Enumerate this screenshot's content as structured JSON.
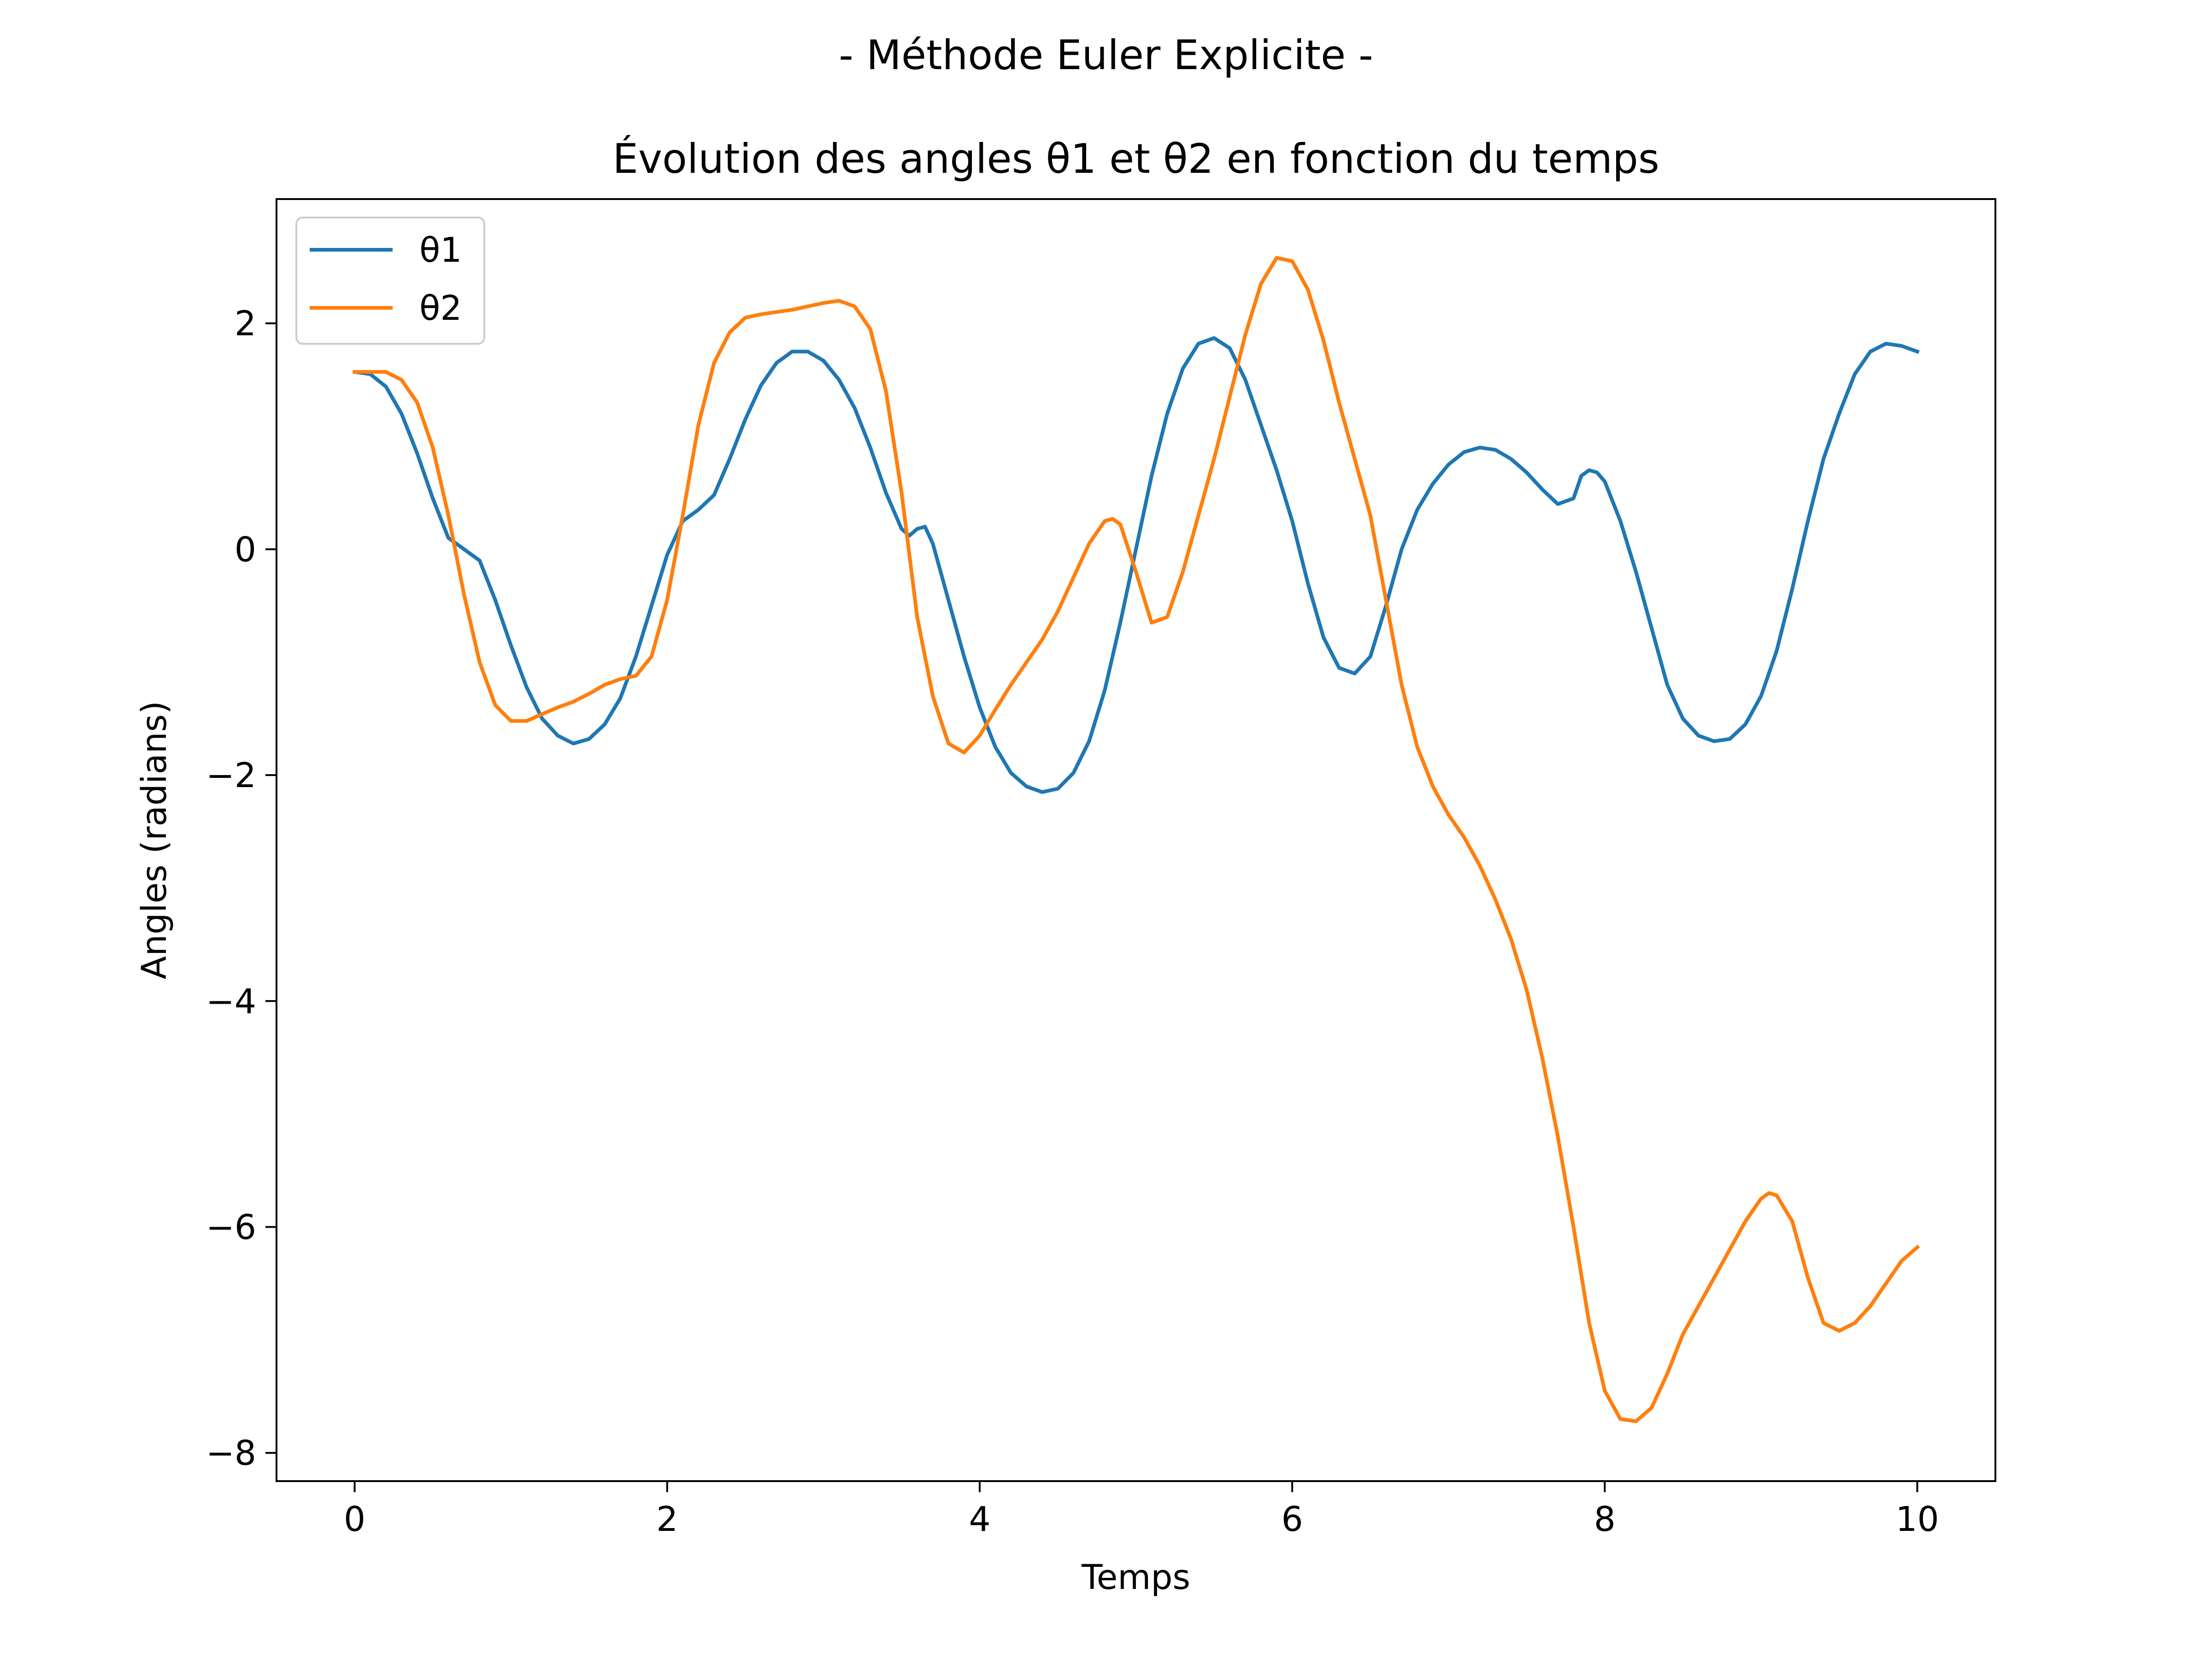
{
  "chart_data": {
    "type": "line",
    "suptitle": "- Méthode Euler Explicite -",
    "title": "Évolution des angles θ1 et θ2 en fonction du temps",
    "xlabel": "Temps",
    "ylabel": "Angles (radians)",
    "xlim": [
      -0.5,
      10.5
    ],
    "ylim": [
      -8.25,
      3.1
    ],
    "xticks": [
      0,
      2,
      4,
      6,
      8,
      10
    ],
    "xtick_labels": [
      "0",
      "2",
      "4",
      "6",
      "8",
      "10"
    ],
    "yticks": [
      -8,
      -6,
      -4,
      -2,
      0,
      2
    ],
    "ytick_labels": [
      "−8",
      "−6",
      "−4",
      "−2",
      "0",
      "2"
    ],
    "grid": false,
    "legend_position": "top-left",
    "series": [
      {
        "name": "θ1",
        "color": "#1f77b4",
        "points": [
          [
            0.0,
            1.57
          ],
          [
            0.1,
            1.55
          ],
          [
            0.2,
            1.44
          ],
          [
            0.3,
            1.2
          ],
          [
            0.4,
            0.85
          ],
          [
            0.5,
            0.45
          ],
          [
            0.6,
            0.1
          ],
          [
            0.7,
            0.0
          ],
          [
            0.8,
            -0.1
          ],
          [
            0.9,
            -0.45
          ],
          [
            1.0,
            -0.85
          ],
          [
            1.1,
            -1.22
          ],
          [
            1.2,
            -1.5
          ],
          [
            1.3,
            -1.65
          ],
          [
            1.4,
            -1.72
          ],
          [
            1.5,
            -1.68
          ],
          [
            1.6,
            -1.55
          ],
          [
            1.7,
            -1.32
          ],
          [
            1.8,
            -0.95
          ],
          [
            1.9,
            -0.5
          ],
          [
            2.0,
            -0.05
          ],
          [
            2.1,
            0.25
          ],
          [
            2.2,
            0.35
          ],
          [
            2.3,
            0.48
          ],
          [
            2.4,
            0.8
          ],
          [
            2.5,
            1.15
          ],
          [
            2.6,
            1.45
          ],
          [
            2.7,
            1.65
          ],
          [
            2.8,
            1.75
          ],
          [
            2.9,
            1.75
          ],
          [
            3.0,
            1.67
          ],
          [
            3.1,
            1.5
          ],
          [
            3.2,
            1.25
          ],
          [
            3.3,
            0.9
          ],
          [
            3.4,
            0.5
          ],
          [
            3.5,
            0.18
          ],
          [
            3.55,
            0.12
          ],
          [
            3.6,
            0.18
          ],
          [
            3.65,
            0.2
          ],
          [
            3.7,
            0.05
          ],
          [
            3.8,
            -0.45
          ],
          [
            3.9,
            -0.95
          ],
          [
            4.0,
            -1.4
          ],
          [
            4.1,
            -1.75
          ],
          [
            4.2,
            -1.98
          ],
          [
            4.3,
            -2.1
          ],
          [
            4.4,
            -2.15
          ],
          [
            4.5,
            -2.12
          ],
          [
            4.6,
            -1.98
          ],
          [
            4.7,
            -1.7
          ],
          [
            4.8,
            -1.25
          ],
          [
            4.9,
            -0.65
          ],
          [
            5.0,
            0.0
          ],
          [
            5.1,
            0.65
          ],
          [
            5.2,
            1.2
          ],
          [
            5.3,
            1.6
          ],
          [
            5.4,
            1.82
          ],
          [
            5.5,
            1.87
          ],
          [
            5.6,
            1.78
          ],
          [
            5.7,
            1.5
          ],
          [
            5.8,
            1.1
          ],
          [
            5.9,
            0.7
          ],
          [
            6.0,
            0.25
          ],
          [
            6.1,
            -0.3
          ],
          [
            6.2,
            -0.78
          ],
          [
            6.3,
            -1.05
          ],
          [
            6.4,
            -1.1
          ],
          [
            6.5,
            -0.95
          ],
          [
            6.6,
            -0.5
          ],
          [
            6.7,
            0.0
          ],
          [
            6.8,
            0.35
          ],
          [
            6.9,
            0.58
          ],
          [
            7.0,
            0.75
          ],
          [
            7.1,
            0.86
          ],
          [
            7.2,
            0.9
          ],
          [
            7.3,
            0.88
          ],
          [
            7.4,
            0.8
          ],
          [
            7.5,
            0.68
          ],
          [
            7.6,
            0.53
          ],
          [
            7.7,
            0.4
          ],
          [
            7.8,
            0.45
          ],
          [
            7.85,
            0.65
          ],
          [
            7.9,
            0.7
          ],
          [
            7.95,
            0.68
          ],
          [
            8.0,
            0.6
          ],
          [
            8.1,
            0.25
          ],
          [
            8.2,
            -0.2
          ],
          [
            8.3,
            -0.7
          ],
          [
            8.4,
            -1.2
          ],
          [
            8.5,
            -1.5
          ],
          [
            8.6,
            -1.65
          ],
          [
            8.7,
            -1.7
          ],
          [
            8.8,
            -1.68
          ],
          [
            8.9,
            -1.55
          ],
          [
            9.0,
            -1.3
          ],
          [
            9.1,
            -0.9
          ],
          [
            9.2,
            -0.35
          ],
          [
            9.3,
            0.25
          ],
          [
            9.4,
            0.8
          ],
          [
            9.5,
            1.2
          ],
          [
            9.6,
            1.55
          ],
          [
            9.7,
            1.75
          ],
          [
            9.8,
            1.82
          ],
          [
            9.9,
            1.8
          ],
          [
            10.0,
            1.75
          ]
        ]
      },
      {
        "name": "θ2",
        "color": "#ff7f0e",
        "points": [
          [
            0.0,
            1.57
          ],
          [
            0.1,
            1.57
          ],
          [
            0.2,
            1.57
          ],
          [
            0.3,
            1.5
          ],
          [
            0.4,
            1.3
          ],
          [
            0.5,
            0.9
          ],
          [
            0.6,
            0.3
          ],
          [
            0.7,
            -0.4
          ],
          [
            0.8,
            -1.0
          ],
          [
            0.9,
            -1.38
          ],
          [
            1.0,
            -1.52
          ],
          [
            1.1,
            -1.52
          ],
          [
            1.2,
            -1.46
          ],
          [
            1.3,
            -1.4
          ],
          [
            1.4,
            -1.35
          ],
          [
            1.5,
            -1.28
          ],
          [
            1.6,
            -1.2
          ],
          [
            1.7,
            -1.15
          ],
          [
            1.8,
            -1.12
          ],
          [
            1.9,
            -0.95
          ],
          [
            2.0,
            -0.45
          ],
          [
            2.1,
            0.3
          ],
          [
            2.2,
            1.1
          ],
          [
            2.3,
            1.65
          ],
          [
            2.4,
            1.92
          ],
          [
            2.5,
            2.05
          ],
          [
            2.6,
            2.08
          ],
          [
            2.7,
            2.1
          ],
          [
            2.8,
            2.12
          ],
          [
            2.9,
            2.15
          ],
          [
            3.0,
            2.18
          ],
          [
            3.1,
            2.2
          ],
          [
            3.2,
            2.15
          ],
          [
            3.3,
            1.95
          ],
          [
            3.4,
            1.4
          ],
          [
            3.5,
            0.5
          ],
          [
            3.6,
            -0.6
          ],
          [
            3.7,
            -1.3
          ],
          [
            3.8,
            -1.72
          ],
          [
            3.9,
            -1.8
          ],
          [
            4.0,
            -1.65
          ],
          [
            4.1,
            -1.42
          ],
          [
            4.2,
            -1.2
          ],
          [
            4.3,
            -1.0
          ],
          [
            4.4,
            -0.8
          ],
          [
            4.5,
            -0.55
          ],
          [
            4.6,
            -0.25
          ],
          [
            4.7,
            0.05
          ],
          [
            4.8,
            0.25
          ],
          [
            4.85,
            0.27
          ],
          [
            4.9,
            0.22
          ],
          [
            5.0,
            -0.2
          ],
          [
            5.1,
            -0.65
          ],
          [
            5.2,
            -0.6
          ],
          [
            5.3,
            -0.2
          ],
          [
            5.4,
            0.3
          ],
          [
            5.5,
            0.8
          ],
          [
            5.6,
            1.35
          ],
          [
            5.7,
            1.9
          ],
          [
            5.8,
            2.35
          ],
          [
            5.9,
            2.58
          ],
          [
            6.0,
            2.55
          ],
          [
            6.1,
            2.3
          ],
          [
            6.2,
            1.85
          ],
          [
            6.3,
            1.3
          ],
          [
            6.4,
            0.8
          ],
          [
            6.5,
            0.3
          ],
          [
            6.6,
            -0.45
          ],
          [
            6.7,
            -1.2
          ],
          [
            6.8,
            -1.75
          ],
          [
            6.9,
            -2.1
          ],
          [
            7.0,
            -2.35
          ],
          [
            7.1,
            -2.55
          ],
          [
            7.2,
            -2.8
          ],
          [
            7.3,
            -3.1
          ],
          [
            7.4,
            -3.45
          ],
          [
            7.5,
            -3.9
          ],
          [
            7.6,
            -4.5
          ],
          [
            7.7,
            -5.2
          ],
          [
            7.8,
            -6.0
          ],
          [
            7.9,
            -6.85
          ],
          [
            8.0,
            -7.45
          ],
          [
            8.1,
            -7.7
          ],
          [
            8.2,
            -7.72
          ],
          [
            8.3,
            -7.6
          ],
          [
            8.4,
            -7.3
          ],
          [
            8.5,
            -6.95
          ],
          [
            8.6,
            -6.7
          ],
          [
            8.7,
            -6.45
          ],
          [
            8.8,
            -6.2
          ],
          [
            8.9,
            -5.95
          ],
          [
            9.0,
            -5.75
          ],
          [
            9.05,
            -5.7
          ],
          [
            9.1,
            -5.72
          ],
          [
            9.2,
            -5.95
          ],
          [
            9.3,
            -6.45
          ],
          [
            9.4,
            -6.85
          ],
          [
            9.5,
            -6.92
          ],
          [
            9.6,
            -6.85
          ],
          [
            9.7,
            -6.7
          ],
          [
            9.8,
            -6.5
          ],
          [
            9.9,
            -6.3
          ],
          [
            10.0,
            -6.18
          ]
        ]
      }
    ]
  }
}
